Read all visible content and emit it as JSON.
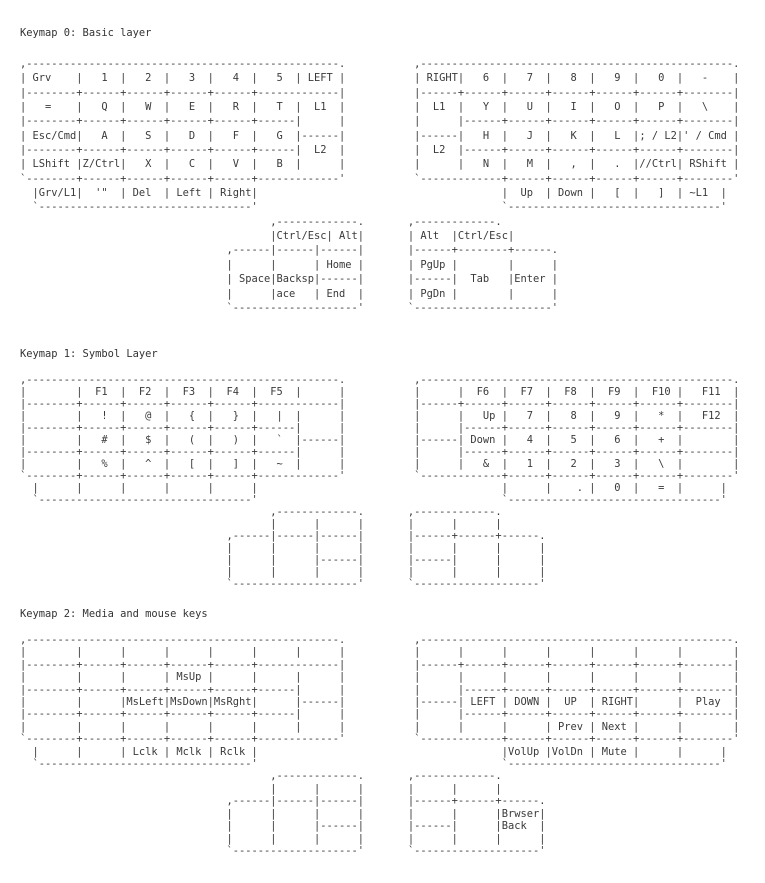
{
  "layers": [
    {
      "title": "Keymap 0: Basic layer",
      "lines": [
        ",--------------------------------------------------.           ,--------------------------------------------------.",
        "| Grv    |   1  |   2  |   3  |   4  |   5  | LEFT |           | RIGHT|   6  |   7  |   8  |   9  |   0  |   -    |",
        "|--------+------+------+------+------+-------------|           |------+------+------+------+------+------+--------|",
        "|   =    |   Q  |   W  |   E  |   R  |   T  |  L1  |           |  L1  |   Y  |   U  |   I  |   O  |   P  |   \\    |",
        "|--------+------+------+------+------+------|      |           |      |------+------+------+------+------+--------|",
        "| Esc/Cmd|   A  |   S  |   D  |   F  |   G  |------|           |------|   H  |   J  |   K  |   L  |; / L2|' / Cmd |",
        "|--------+------+------+------+------+------|  L2  |           |  L2  |------+------+------+------+------+--------|",
        "| LShift |Z/Ctrl|   X  |   C  |   V  |   B  |      |           |      |   N  |   M  |   ,  |   .  |//Ctrl| RShift |",
        "`--------+------+------+------+------+-------------'           `-------------+------+------+------+------+--------'",
        "  |Grv/L1|  '\"  | Del  | Left | Right|                                       |  Up  | Down |   [  |   ]  | ~L1  |",
        "  `----------------------------------'                                       `----------------------------------'",
        "                                        ,-------------.       ,-------------.",
        "                                        |Ctrl/Esc| Alt|       | Alt  |Ctrl/Esc|",
        "                                 ,------|------|------|       |------+--------+------.",
        "                                 |      |      | Home |       | PgUp |        |      |",
        "                                 | Space|Backsp|------|       |------|  Tab   |Enter |",
        "                                 |      |ace   | End  |       | PgDn |        |      |",
        "                                 `--------------------'       `----------------------'"
      ]
    },
    {
      "title": "Keymap 1: Symbol Layer",
      "lines": [
        ",--------------------------------------------------.           ,--------------------------------------------------.",
        "|        |  F1  |  F2  |  F3  |  F4  |  F5  |      |           |      |  F6  |  F7  |  F8  |  F9  |  F10 |   F11  |",
        "|--------+------+------+------+------+-------------|           |------+------+------+------+------+------+--------|",
        "|        |   !  |   @  |   {  |   }  |   |  |      |           |      |   Up |   7  |   8  |   9  |   *  |   F12  |",
        "|--------+------+------+------+------+------|      |           |      |------+------+------+------+------+--------|",
        "|        |   #  |   $  |   (  |   )  |   `  |------|           |------| Down |   4  |   5  |   6  |   +  |        |",
        "|--------+------+------+------+------+------|      |           |      |------+------+------+------+------+--------|",
        "|        |   %  |   ^  |   [  |   ]  |   ~  |      |           |      |   &  |   1  |   2  |   3  |   \\  |        |",
        "`--------+------+------+------+------+-------------'           `-------------+------+------+------+------+--------'",
        "  |      |      |      |      |      |                                       |      |    . |   0  |   =  |      |",
        "  `----------------------------------'                                       `----------------------------------'",
        "                                        ,-------------.       ,-------------.",
        "                                        |      |      |       |      |      |",
        "                                 ,------|------|------|       |------+------+------.",
        "                                 |      |      |      |       |      |      |      |",
        "                                 |      |      |------|       |------|      |      |",
        "                                 |      |      |      |       |      |      |      |",
        "                                 `--------------------'       `--------------------'"
      ]
    },
    {
      "title": "Keymap 2: Media and mouse keys",
      "lines": [
        ",--------------------------------------------------.           ,--------------------------------------------------.",
        "|        |      |      |      |      |      |      |           |      |      |      |      |      |      |        |",
        "|--------+------+------+------+------+-------------|           |------+------+------+------+------+------+--------|",
        "|        |      |      | MsUp |      |      |      |           |      |      |      |      |      |      |        |",
        "|--------+------+------+------+------+------|      |           |      |------+------+------+------+------+--------|",
        "|        |      |MsLeft|MsDown|MsRght|      |------|           |------| LEFT | DOWN |  UP  | RIGHT|      |  Play  |",
        "|--------+------+------+------+------+------|      |           |      |------+------+------+------+------+--------|",
        "|        |      |      |      |      |      |      |           |      |      |      | Prev | Next |      |        |",
        "`--------+------+------+------+------+-------------'           `-------------+------+------+------+------+--------'",
        "  |      |      | Lclk | Mclk | Rclk |                                       |VolUp |VolDn | Mute |      |      |",
        "  `----------------------------------'                                       `----------------------------------'",
        "                                        ,-------------.       ,-------------.",
        "                                        |      |      |       |      |      |",
        "                                 ,------|------|------|       |------+------+------.",
        "                                 |      |      |      |       |      |      |Brwser|",
        "                                 |      |      |------|       |------|      |Back  |",
        "                                 |      |      |      |       |      |      |      |",
        "                                 `--------------------'       `--------------------'"
      ]
    }
  ]
}
